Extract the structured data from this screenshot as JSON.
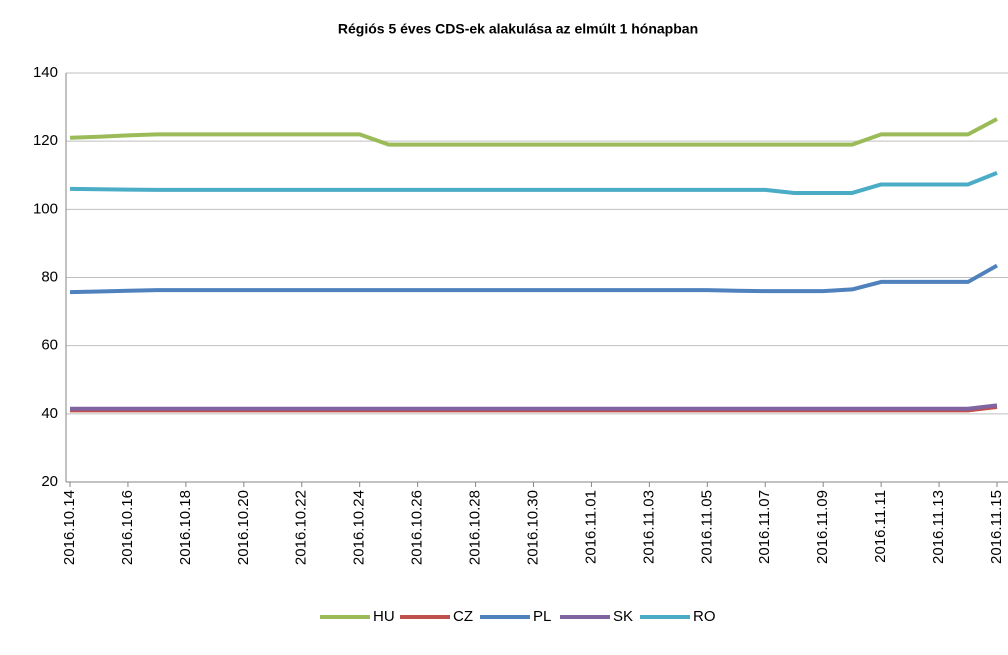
{
  "chart_data": {
    "type": "line",
    "title": "Régiós 5 éves CDS-ek alakulása az elmúlt 1 hónapban",
    "categories": [
      "2016.10.14",
      null,
      "2016.10.16",
      null,
      "2016.10.18",
      null,
      "2016.10.20",
      null,
      "2016.10.22",
      null,
      "2016.10.24",
      null,
      "2016.10.26",
      null,
      "2016.10.28",
      null,
      "2016.10.30",
      null,
      "2016.11.01",
      null,
      "2016.11.03",
      null,
      "2016.11.05",
      null,
      "2016.11.07",
      null,
      "2016.11.09",
      null,
      "2016.11.11",
      null,
      "2016.11.13",
      null,
      "2016.11.15"
    ],
    "series": [
      {
        "name": "HU",
        "color": "#9bbb59",
        "values": [
          121,
          121.3,
          121.7,
          122,
          122,
          122,
          122,
          122,
          122,
          122,
          122,
          119,
          119,
          119,
          119,
          119,
          119,
          119,
          119,
          119,
          119,
          119,
          119,
          119,
          119,
          119,
          119,
          119,
          122,
          122,
          122,
          122,
          126.5
        ]
      },
      {
        "name": "CZ",
        "color": "#c0504d",
        "values": [
          41,
          41,
          41,
          41,
          41,
          41,
          41,
          41,
          41,
          41,
          41,
          41,
          41,
          41,
          41,
          41,
          41,
          41,
          41,
          41,
          41,
          41,
          41,
          41,
          41,
          41,
          41,
          41,
          41,
          41,
          41,
          41,
          42
        ]
      },
      {
        "name": "PL",
        "color": "#4f81bd",
        "values": [
          75.7,
          75.9,
          76.1,
          76.3,
          76.3,
          76.3,
          76.3,
          76.3,
          76.3,
          76.3,
          76.3,
          76.3,
          76.3,
          76.3,
          76.3,
          76.3,
          76.3,
          76.3,
          76.3,
          76.3,
          76.3,
          76.3,
          76.3,
          76.1,
          76,
          76,
          76,
          76.5,
          78.7,
          78.7,
          78.7,
          78.7,
          83.5
        ]
      },
      {
        "name": "SK",
        "color": "#8064a2",
        "values": [
          41.5,
          41.5,
          41.5,
          41.5,
          41.5,
          41.5,
          41.5,
          41.5,
          41.5,
          41.5,
          41.5,
          41.5,
          41.5,
          41.5,
          41.5,
          41.5,
          41.5,
          41.5,
          41.5,
          41.5,
          41.5,
          41.5,
          41.5,
          41.5,
          41.5,
          41.5,
          41.5,
          41.5,
          41.5,
          41.5,
          41.5,
          41.5,
          42.5
        ]
      },
      {
        "name": "RO",
        "color": "#4bacc6",
        "values": [
          106,
          105.9,
          105.8,
          105.7,
          105.7,
          105.7,
          105.7,
          105.7,
          105.7,
          105.7,
          105.7,
          105.7,
          105.7,
          105.7,
          105.7,
          105.7,
          105.7,
          105.7,
          105.7,
          105.7,
          105.7,
          105.7,
          105.7,
          105.7,
          105.7,
          104.8,
          104.8,
          104.8,
          107.3,
          107.3,
          107.3,
          107.3,
          110.7
        ]
      }
    ],
    "ylim": [
      20,
      140
    ],
    "yticks": [
      20,
      40,
      60,
      80,
      100,
      120,
      140
    ],
    "grid": true,
    "legend": "bottom"
  }
}
